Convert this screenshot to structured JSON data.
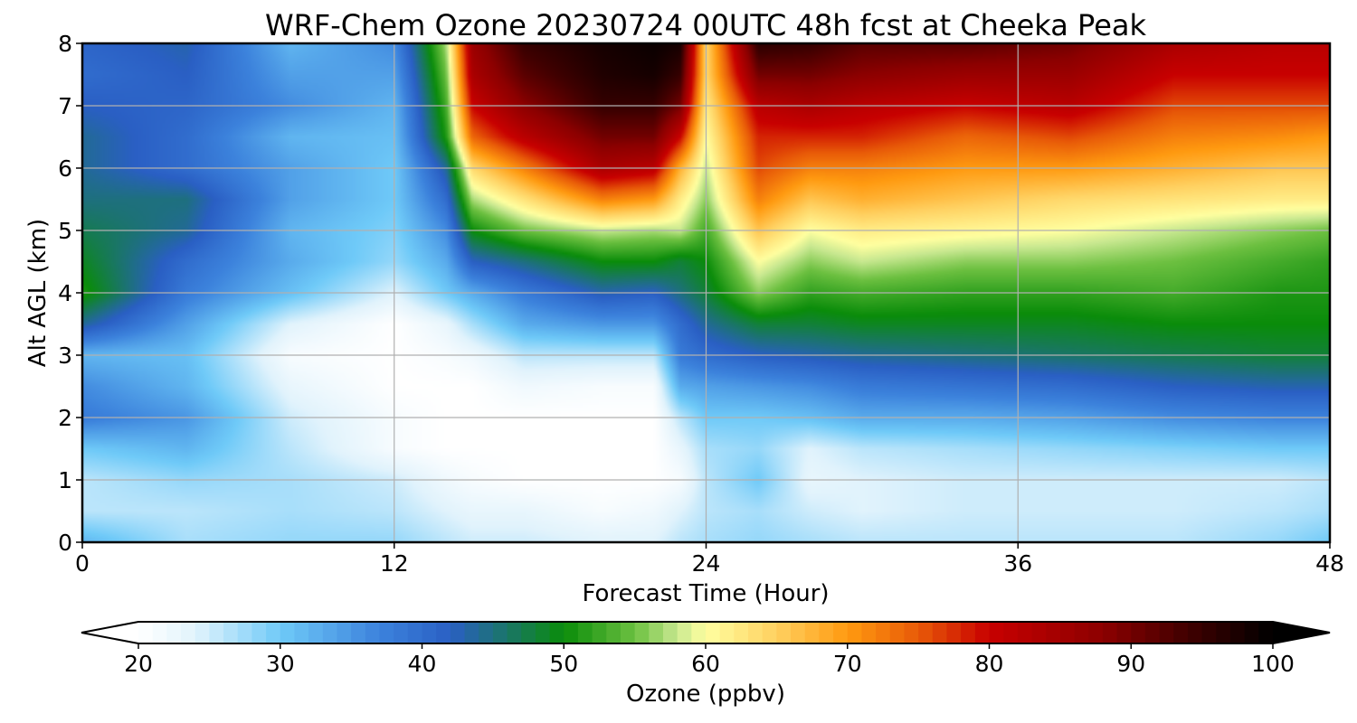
{
  "chart_data": {
    "type": "heatmap",
    "title": "WRF-Chem Ozone  20230724 00UTC 48h fcst at Cheeka Peak",
    "xlabel": "Forecast Time (Hour)",
    "ylabel": "Alt AGL (km)",
    "xlim": [
      0,
      48
    ],
    "ylim": [
      0,
      8
    ],
    "x_ticks": [
      0,
      12,
      24,
      36,
      48
    ],
    "y_ticks": [
      0,
      1,
      2,
      3,
      4,
      5,
      6,
      7,
      8
    ],
    "grid": true,
    "colorbar": {
      "label": "Ozone  (ppbv)",
      "range": [
        20,
        100
      ],
      "ticks": [
        20,
        30,
        40,
        50,
        60,
        70,
        80,
        90,
        100
      ],
      "extend": "both",
      "stops": [
        {
          "v": 20,
          "c": "#ffffff"
        },
        {
          "v": 24,
          "c": "#e1f3fc"
        },
        {
          "v": 30,
          "c": "#6fcaf8"
        },
        {
          "v": 37,
          "c": "#3c82dc"
        },
        {
          "v": 42,
          "c": "#2a5fc4"
        },
        {
          "v": 50,
          "c": "#0a8c0a"
        },
        {
          "v": 55,
          "c": "#6cc040"
        },
        {
          "v": 58,
          "c": "#c8e890"
        },
        {
          "v": 60,
          "c": "#ffffa0"
        },
        {
          "v": 65,
          "c": "#ffd060"
        },
        {
          "v": 70,
          "c": "#ff9a10"
        },
        {
          "v": 75,
          "c": "#e85a08"
        },
        {
          "v": 80,
          "c": "#c80000"
        },
        {
          "v": 88,
          "c": "#8c0000"
        },
        {
          "v": 94,
          "c": "#400000"
        },
        {
          "v": 100,
          "c": "#000000"
        }
      ]
    },
    "x_hours": [
      0,
      4,
      8,
      12,
      14,
      15,
      17,
      20,
      22,
      23,
      24,
      26,
      28,
      30,
      34,
      38,
      42,
      46,
      48
    ],
    "z_km": [
      0,
      0.5,
      1,
      1.5,
      2,
      2.5,
      3,
      3.5,
      4,
      4.5,
      5,
      5.5,
      6,
      6.5,
      7,
      7.5,
      8
    ],
    "ozone_ppbv": [
      [
        32,
        26,
        26,
        30,
        38,
        36,
        32,
        44,
        51,
        49,
        47,
        45,
        44,
        44,
        42,
        40,
        41
      ],
      [
        27,
        26,
        28,
        32,
        35,
        32,
        31,
        34,
        38,
        40,
        44,
        45,
        40,
        40,
        41,
        42,
        43
      ],
      [
        28,
        27,
        27,
        26,
        25,
        23,
        21,
        24,
        31,
        33,
        32,
        34,
        34,
        32,
        36,
        34,
        32
      ],
      [
        28,
        26,
        25,
        21,
        21,
        20,
        20,
        20,
        24,
        28,
        29,
        30,
        30,
        31,
        32,
        34,
        36
      ],
      [
        26,
        24,
        22,
        20,
        20,
        20,
        21,
        23,
        30,
        33,
        36,
        40,
        44,
        51,
        53,
        55,
        57
      ],
      [
        25,
        23,
        21,
        20,
        20,
        20,
        22,
        27,
        33,
        42,
        50,
        57,
        64,
        74,
        80,
        84,
        86
      ],
      [
        25,
        23,
        20,
        20,
        20,
        22,
        26,
        33,
        38,
        45,
        55,
        63,
        72,
        82,
        88,
        92,
        95
      ],
      [
        24,
        21,
        20,
        20,
        20,
        21,
        26,
        35,
        43,
        50,
        58,
        72,
        84,
        90,
        95,
        97,
        98
      ],
      [
        24,
        22,
        20,
        20,
        20,
        21,
        26,
        35,
        42,
        50,
        57,
        70,
        82,
        90,
        95,
        98,
        99
      ],
      [
        26,
        24,
        21,
        23,
        26,
        33,
        38,
        40,
        45,
        48,
        58,
        62,
        68,
        80,
        90,
        95,
        98
      ],
      [
        27,
        26,
        26,
        27,
        30,
        34,
        40,
        44,
        48,
        50,
        53,
        56,
        58,
        60,
        62,
        64,
        64
      ],
      [
        28,
        27,
        30,
        28,
        30,
        35,
        42,
        48,
        56,
        60,
        66,
        72,
        76,
        78,
        82,
        90,
        96
      ],
      [
        27,
        25,
        23,
        24,
        31,
        36,
        43,
        48,
        52,
        56,
        60,
        66,
        72,
        78,
        84,
        90,
        95
      ],
      [
        26,
        24,
        24,
        26,
        33,
        38,
        44,
        49,
        53,
        58,
        62,
        68,
        72,
        78,
        82,
        88,
        92
      ],
      [
        26,
        25,
        25,
        27,
        33,
        39,
        45,
        49,
        52,
        56,
        61,
        66,
        70,
        74,
        80,
        86,
        92
      ],
      [
        26,
        25,
        25,
        28,
        34,
        40,
        46,
        49,
        52,
        56,
        60,
        64,
        70,
        76,
        82,
        86,
        90
      ],
      [
        26,
        25,
        25,
        29,
        36,
        42,
        47,
        50,
        53,
        55,
        58,
        63,
        68,
        72,
        76,
        80,
        84
      ],
      [
        28,
        26,
        25,
        30,
        37,
        43,
        48,
        50,
        51,
        53,
        56,
        62,
        66,
        71,
        76,
        80,
        82
      ],
      [
        30,
        27,
        26,
        30,
        37,
        43,
        48,
        50,
        51,
        52,
        55,
        62,
        66,
        70,
        76,
        80,
        82
      ]
    ]
  }
}
